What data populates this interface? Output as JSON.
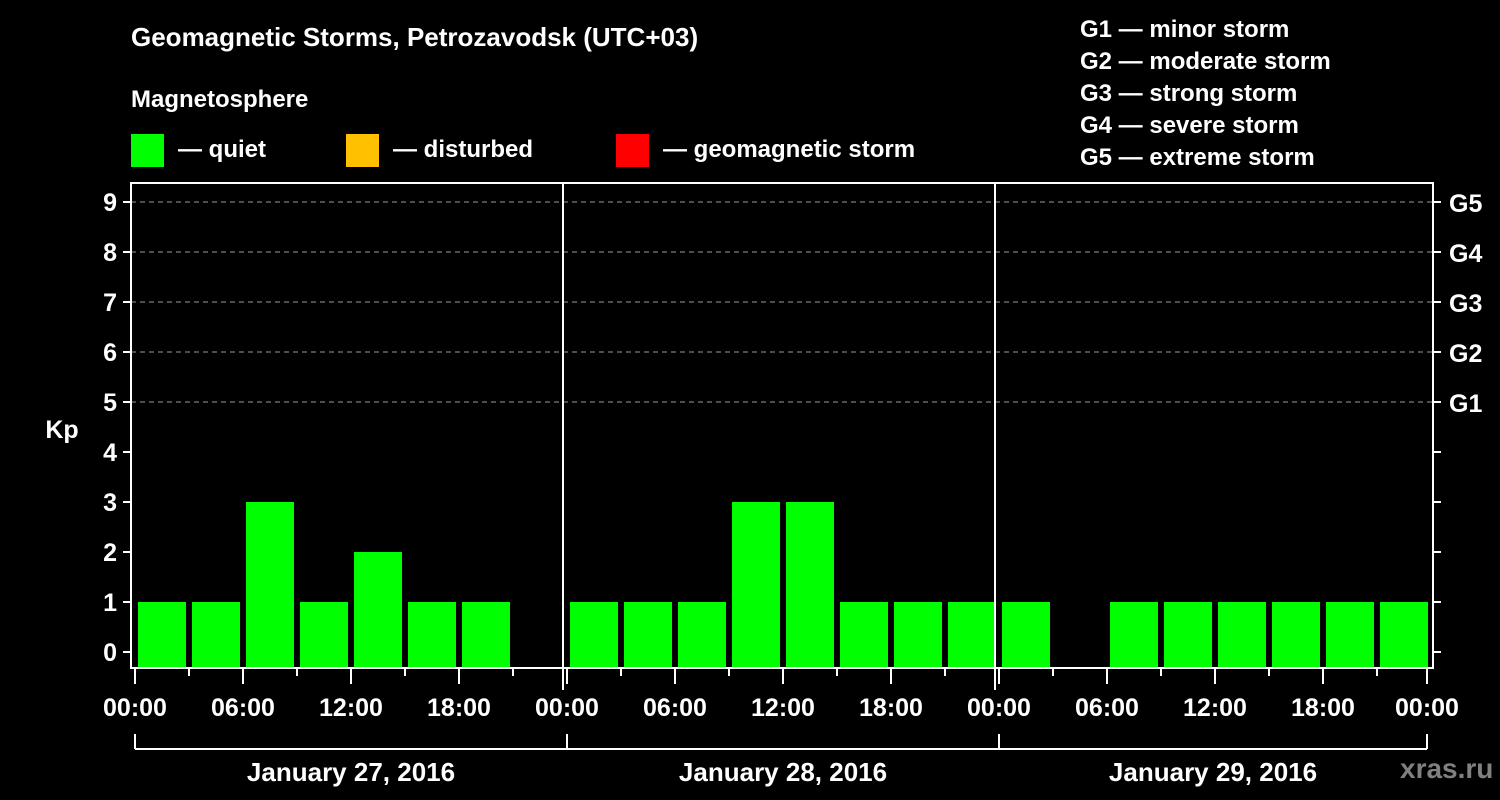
{
  "header": {
    "title": "Geomagnetic Storms, Petrozavodsk (UTC+03)",
    "subtitle": "Magnetosphere"
  },
  "legend": {
    "items": [
      {
        "label": "— quiet",
        "color": "#00ff00"
      },
      {
        "label": "— disturbed",
        "color": "#ffc000"
      },
      {
        "label": "— geomagnetic storm",
        "color": "#ff0000"
      }
    ]
  },
  "g_legend": [
    "G1 — minor storm",
    "G2 — moderate storm",
    "G3 — strong storm",
    "G4 — severe storm",
    "G5 — extreme storm"
  ],
  "watermark": "xras.ru",
  "chart_data": {
    "type": "bar",
    "title": "Geomagnetic Storms, Petrozavodsk (UTC+03)",
    "subtitle": "Magnetosphere",
    "xlabel": "",
    "ylabel": "Kp",
    "ylim": [
      0,
      9
    ],
    "y_ticks": [
      0,
      1,
      2,
      3,
      4,
      5,
      6,
      7,
      8,
      9
    ],
    "right_axis_labels": [
      {
        "kp": 5,
        "label": "G1"
      },
      {
        "kp": 6,
        "label": "G2"
      },
      {
        "kp": 7,
        "label": "G3"
      },
      {
        "kp": 8,
        "label": "G4"
      },
      {
        "kp": 9,
        "label": "G5"
      }
    ],
    "grid": "dashed horizontal at Kp 5-9",
    "x_tick_labels": [
      "00:00",
      "06:00",
      "12:00",
      "18:00",
      "00:00",
      "06:00",
      "12:00",
      "18:00",
      "00:00",
      "06:00",
      "12:00",
      "18:00",
      "00:00"
    ],
    "days": [
      {
        "date": "January 27, 2016",
        "slots": [
          "00-03",
          "03-06",
          "06-09",
          "09-12",
          "12-15",
          "15-18",
          "18-21",
          "21-24"
        ],
        "values": [
          1,
          1,
          3,
          1,
          2,
          1,
          1,
          0
        ]
      },
      {
        "date": "January 28, 2016",
        "slots": [
          "00-03",
          "03-06",
          "06-09",
          "09-12",
          "12-15",
          "15-18",
          "18-21",
          "21-24"
        ],
        "values": [
          1,
          1,
          1,
          3,
          3,
          1,
          1,
          1
        ]
      },
      {
        "date": "January 29, 2016",
        "slots": [
          "00-03",
          "03-06",
          "06-09",
          "09-12",
          "12-15",
          "15-18",
          "18-21",
          "21-24"
        ],
        "values": [
          1,
          0,
          1,
          1,
          1,
          1,
          1,
          1
        ]
      }
    ],
    "bar_color": "#00ff00",
    "legend": [
      "quiet",
      "disturbed",
      "geomagnetic storm"
    ]
  }
}
